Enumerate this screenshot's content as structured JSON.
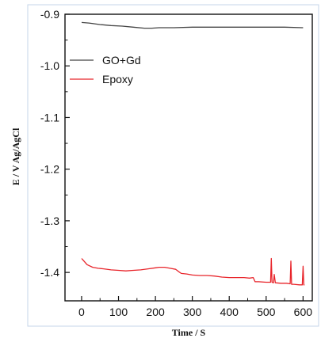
{
  "chart_data": {
    "type": "line",
    "xlabel": "Time / S",
    "ylabel": "E / V Ag/AgCl",
    "xlim": [
      -45,
      625
    ],
    "ylim": [
      -1.455,
      -0.9
    ],
    "y_inverted": true,
    "x_ticks": [
      0,
      100,
      200,
      300,
      400,
      500,
      600
    ],
    "y_ticks": [
      -0.9,
      -1.0,
      -1.1,
      -1.2,
      -1.3,
      -1.4
    ],
    "x_tick_labels": [
      "0",
      "100",
      "200",
      "300",
      "400",
      "500",
      "600"
    ],
    "y_tick_labels": [
      "-0.9",
      "-1.0",
      "-1.1",
      "-1.2",
      "-1.3",
      "-1.4"
    ],
    "grid": false,
    "legend_position": "top-left",
    "series": [
      {
        "name": "GO+Gd",
        "color": "#444444",
        "x": [
          0,
          20,
          50,
          80,
          110,
          140,
          170,
          190,
          210,
          250,
          300,
          350,
          400,
          450,
          500,
          550,
          600
        ],
        "y": [
          -0.916,
          -0.917,
          -0.92,
          -0.922,
          -0.923,
          -0.925,
          -0.927,
          -0.927,
          -0.926,
          -0.926,
          -0.925,
          -0.925,
          -0.925,
          -0.925,
          -0.925,
          -0.925,
          -0.926
        ]
      },
      {
        "name": "Epoxy",
        "color": "#e8242a",
        "x": [
          0,
          5,
          15,
          30,
          45,
          60,
          80,
          100,
          120,
          140,
          160,
          180,
          200,
          210,
          225,
          240,
          255,
          262,
          270,
          285,
          300,
          320,
          340,
          360,
          380,
          400,
          420,
          440,
          455,
          465,
          470,
          480,
          500,
          512,
          514,
          516,
          520,
          522,
          525,
          540,
          555,
          565,
          567,
          569,
          575,
          590,
          598,
          600,
          602,
          604
        ],
        "y": [
          -1.373,
          -1.377,
          -1.385,
          -1.39,
          -1.392,
          -1.393,
          -1.395,
          -1.396,
          -1.397,
          -1.396,
          -1.395,
          -1.393,
          -1.391,
          -1.39,
          -1.39,
          -1.392,
          -1.394,
          -1.398,
          -1.402,
          -1.403,
          -1.405,
          -1.406,
          -1.406,
          -1.407,
          -1.409,
          -1.41,
          -1.41,
          -1.41,
          -1.411,
          -1.41,
          -1.418,
          -1.418,
          -1.419,
          -1.419,
          -1.373,
          -1.419,
          -1.42,
          -1.404,
          -1.42,
          -1.421,
          -1.421,
          -1.422,
          -1.378,
          -1.423,
          -1.423,
          -1.424,
          -1.424,
          -1.388,
          -1.424,
          -1.424
        ]
      }
    ]
  }
}
